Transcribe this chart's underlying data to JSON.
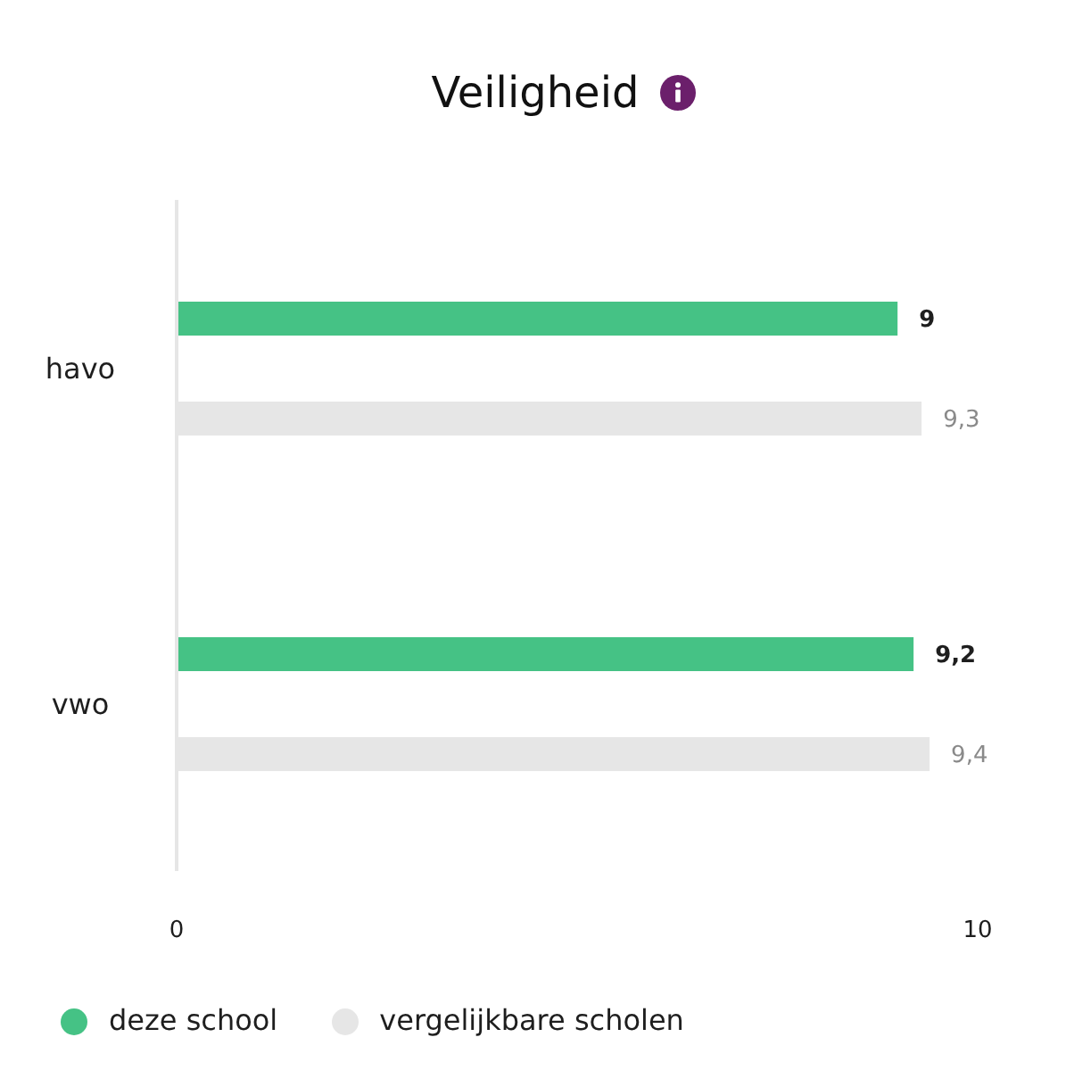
{
  "chart_data": {
    "type": "bar",
    "orientation": "horizontal",
    "title": "Veiligheid",
    "categories": [
      "havo",
      "vwo"
    ],
    "series": [
      {
        "name": "deze school",
        "color": "#45c285",
        "values": [
          9,
          9.2
        ],
        "value_labels": [
          "9",
          "9,2"
        ]
      },
      {
        "name": "vergelijkbare scholen",
        "color": "#e6e6e6",
        "values": [
          9.3,
          9.4
        ],
        "value_labels": [
          "9,3",
          "9,4"
        ]
      }
    ],
    "xlim": [
      0,
      10
    ],
    "xticks": [
      0,
      10
    ],
    "legend": "bottom"
  }
}
